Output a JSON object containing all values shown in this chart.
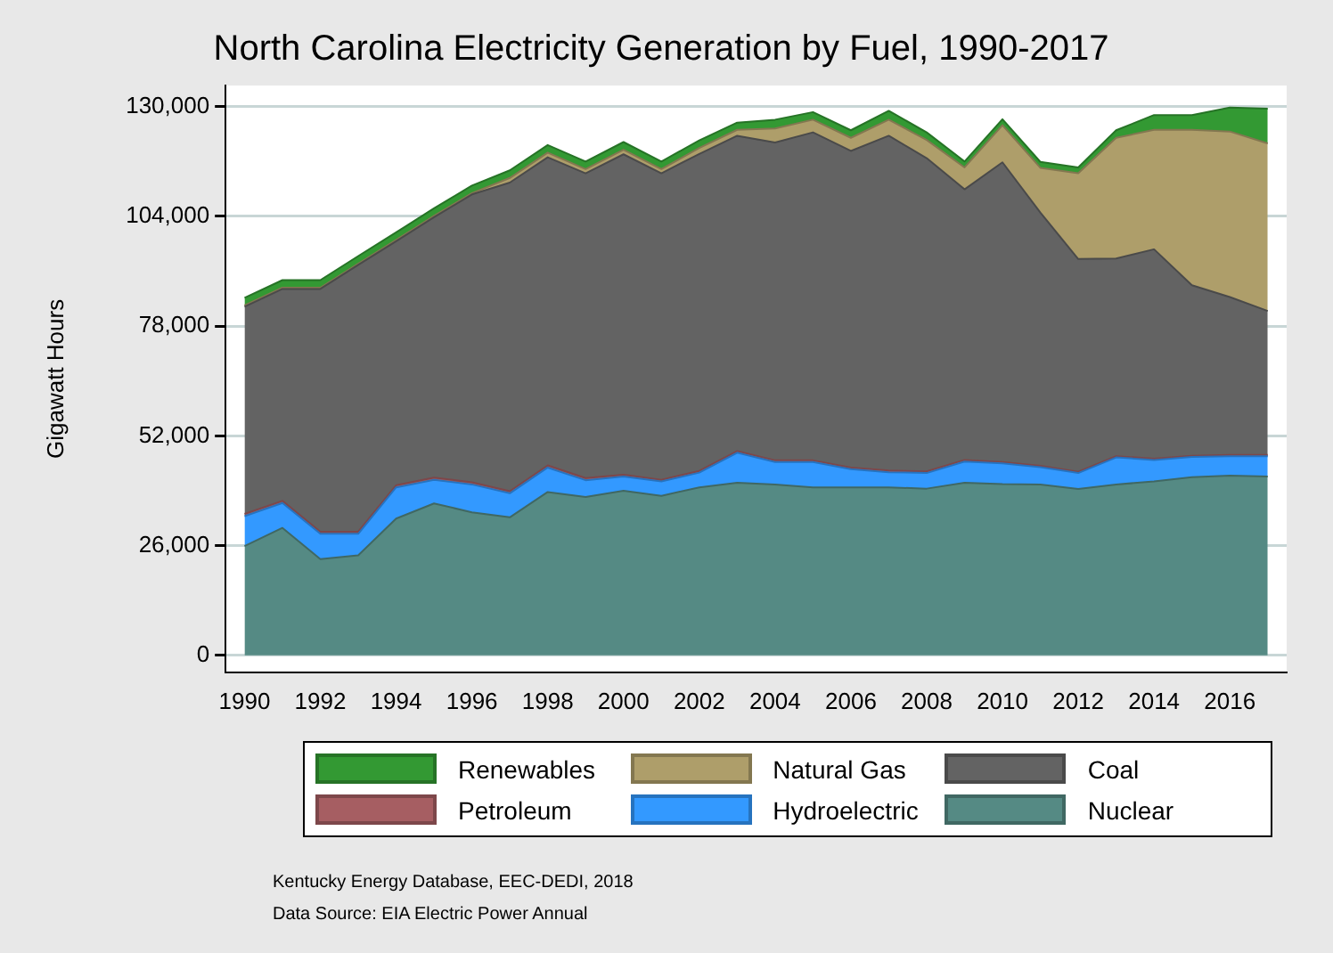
{
  "chart_data": {
    "type": "area",
    "title": "North Carolina Electricity Generation by Fuel, 1990-2017",
    "ylabel": "Gigawatt Hours",
    "stacked": true,
    "grid": "y",
    "legend": "bottom",
    "marker": "none",
    "x": [
      1990,
      1991,
      1992,
      1993,
      1994,
      1995,
      1996,
      1997,
      1998,
      1999,
      2000,
      2001,
      2002,
      2003,
      2004,
      2005,
      2006,
      2007,
      2008,
      2009,
      2010,
      2011,
      2012,
      2013,
      2014,
      2015,
      2016,
      2017
    ],
    "xlim": [
      1989.5,
      2017.5
    ],
    "xticks": [
      1990,
      1992,
      1994,
      1996,
      1998,
      2000,
      2002,
      2004,
      2006,
      2008,
      2010,
      2012,
      2014,
      2016
    ],
    "ylim": [
      -4000,
      135000
    ],
    "yticks": [
      {
        "value": 0,
        "label": "0"
      },
      {
        "value": 26000,
        "label": "26,000"
      },
      {
        "value": 52000,
        "label": "52,000"
      },
      {
        "value": 78000,
        "label": "78,000"
      },
      {
        "value": 104000,
        "label": "104,000"
      },
      {
        "value": 130000,
        "label": "130,000"
      }
    ],
    "series": [
      {
        "name": "Nuclear",
        "color": "#558a84",
        "values": [
          25900,
          30200,
          22800,
          23700,
          32400,
          36000,
          33900,
          32700,
          38700,
          37500,
          39000,
          37800,
          39800,
          40900,
          40500,
          39800,
          39800,
          39800,
          39500,
          40900,
          40600,
          40500,
          39400,
          40500,
          41200,
          42200,
          42600,
          42400
        ]
      },
      {
        "name": "Hydroelectric",
        "color": "#3399ff",
        "values": [
          7100,
          5900,
          6000,
          5100,
          7400,
          5600,
          6600,
          5700,
          5800,
          4000,
          3400,
          3400,
          3500,
          7100,
          5300,
          6000,
          4300,
          3600,
          3700,
          5000,
          4900,
          4100,
          3800,
          6400,
          5100,
          4800,
          4600,
          4800
        ]
      },
      {
        "name": "Petroleum",
        "color": "#a65e62",
        "values": [
          500,
          500,
          500,
          500,
          500,
          500,
          500,
          500,
          500,
          500,
          400,
          400,
          400,
          400,
          400,
          400,
          400,
          400,
          400,
          400,
          300,
          300,
          300,
          300,
          300,
          300,
          300,
          300
        ]
      },
      {
        "name": "Coal",
        "color": "#636363",
        "values": [
          49100,
          50200,
          57500,
          63200,
          57800,
          61700,
          68200,
          73100,
          73000,
          72200,
          75900,
          72600,
          75100,
          74700,
          75300,
          77700,
          75000,
          79300,
          74200,
          64100,
          71000,
          60000,
          50400,
          46800,
          49600,
          40400,
          37400,
          34100
        ]
      },
      {
        "name": "Natural Gas",
        "color": "#ae9e6a",
        "values": [
          300,
          300,
          300,
          300,
          300,
          300,
          300,
          1100,
          1100,
          1000,
          1100,
          1000,
          1400,
          1400,
          3300,
          3000,
          3100,
          3800,
          4300,
          5200,
          8800,
          10600,
          20300,
          28600,
          28300,
          36800,
          39200,
          39700
        ]
      },
      {
        "name": "Renewables",
        "color": "#339933",
        "values": [
          1800,
          1800,
          1800,
          1800,
          1800,
          1800,
          1800,
          1800,
          1800,
          1800,
          1800,
          1800,
          1800,
          1700,
          2100,
          1800,
          1800,
          2100,
          1800,
          1400,
          1400,
          1400,
          1400,
          1800,
          3500,
          3500,
          5700,
          8200
        ]
      }
    ],
    "annotations": [
      "Kentucky Energy Database, EEC-DEDI, 2018",
      "Data Source: EIA Electric Power Annual"
    ]
  }
}
